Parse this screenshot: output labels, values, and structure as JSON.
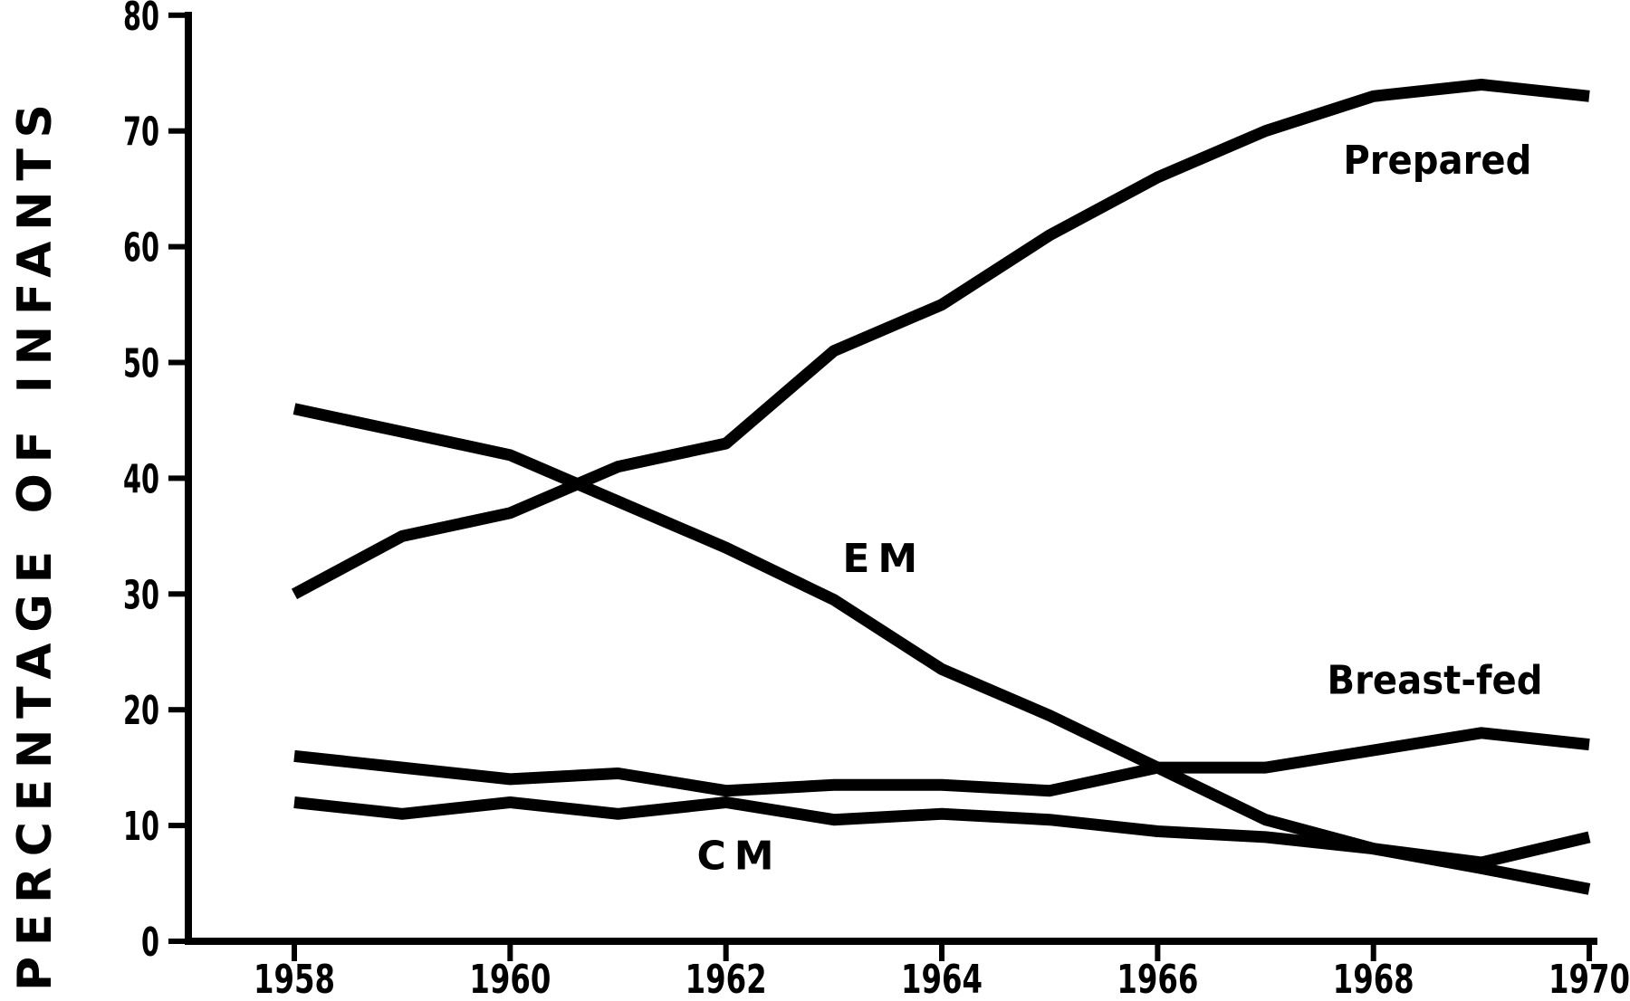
{
  "figure": {
    "background_color": "#ffffff",
    "ink_color": "#000000"
  },
  "chart_data": {
    "type": "line",
    "title": "",
    "xlabel": "",
    "ylabel": "PERCENTAGE OF INFANTS",
    "grid": false,
    "legend": "inline-annotations",
    "xlim": [
      1957,
      1970.1
    ],
    "ylim": [
      0,
      80
    ],
    "x": [
      1958,
      1959,
      1960,
      1961,
      1962,
      1963,
      1964,
      1965,
      1966,
      1967,
      1968,
      1969,
      1970
    ],
    "x_ticks": [
      1958,
      1960,
      1962,
      1964,
      1966,
      1968,
      1970
    ],
    "x_tick_labels": [
      "1958",
      "1960",
      "1962",
      "1964",
      "1966",
      "1968",
      "1970"
    ],
    "y_ticks": [
      0,
      10,
      20,
      30,
      40,
      50,
      60,
      70,
      80
    ],
    "y_tick_labels": [
      "0",
      "10",
      "20",
      "30",
      "40",
      "50",
      "60",
      "70",
      "80"
    ],
    "series": [
      {
        "name": "Prepared",
        "values": [
          30,
          35,
          37,
          41,
          43,
          51,
          55,
          61,
          66,
          70,
          73,
          74,
          73
        ]
      },
      {
        "name": "EM",
        "values": [
          46,
          44,
          42,
          38,
          34,
          29.5,
          23.5,
          19.5,
          15,
          10.5,
          8,
          6.3,
          4.5
        ]
      },
      {
        "name": "Breast-fed",
        "values": [
          16,
          15,
          14,
          14.5,
          13,
          13.5,
          13.5,
          13,
          15,
          15,
          16.5,
          18,
          17
        ]
      },
      {
        "name": "CM",
        "values": [
          12,
          11,
          12,
          11,
          12,
          10.5,
          11,
          10.5,
          9.5,
          9,
          8,
          6.8,
          9
        ]
      }
    ],
    "annotations": [
      {
        "text": "Prepared",
        "year": 1967.72,
        "value": 66.3,
        "spaced": false
      },
      {
        "text": "EM",
        "year": 1963.08,
        "value": 31.9,
        "spaced": true
      },
      {
        "text": "Breast-fed",
        "year": 1967.57,
        "value": 21.4,
        "spaced": false
      },
      {
        "text": "CM",
        "year": 1961.73,
        "value": 6.2,
        "spaced": true
      }
    ]
  }
}
